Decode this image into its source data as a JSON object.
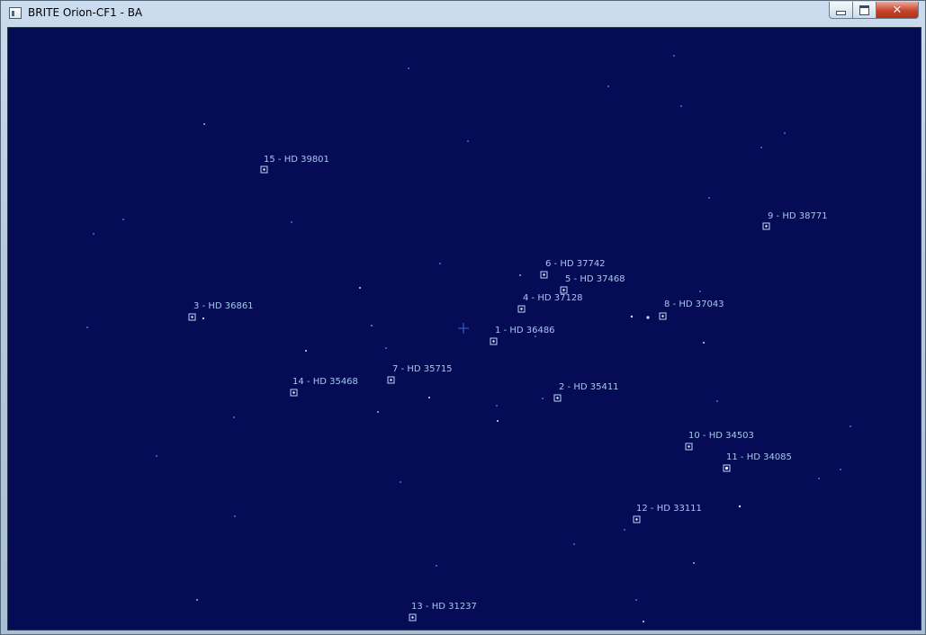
{
  "window": {
    "title": "BRITE Orion-CF1 - BA",
    "minimize": "minimize",
    "maximize": "maximize",
    "close": "close"
  },
  "stars": [
    {
      "number": 1,
      "label": "1 - HD 36486"
    },
    {
      "number": 2,
      "label": "2 - HD 35411"
    },
    {
      "number": 3,
      "label": "3 - HD 36861"
    },
    {
      "number": 4,
      "label": "4 - HD 37128"
    },
    {
      "number": 5,
      "label": "5 - HD 37468"
    },
    {
      "number": 6,
      "label": "6 - HD 37742"
    },
    {
      "number": 7,
      "label": "7 - HD 35715"
    },
    {
      "number": 8,
      "label": "8 - HD 37043"
    },
    {
      "number": 9,
      "label": "9 - HD 38771"
    },
    {
      "number": 10,
      "label": "10 - HD 34503"
    },
    {
      "number": 11,
      "label": "11 - HD 34085"
    },
    {
      "number": 12,
      "label": "12 - HD 33111"
    },
    {
      "number": 13,
      "label": "13 - HD 31237"
    },
    {
      "number": 14,
      "label": "14 - HD 35468"
    },
    {
      "number": 15,
      "label": "15 - HD 39801"
    }
  ],
  "colors": {
    "sky": "#050b55",
    "label": "#a7c7ee",
    "marker": "#b8d4ff"
  }
}
